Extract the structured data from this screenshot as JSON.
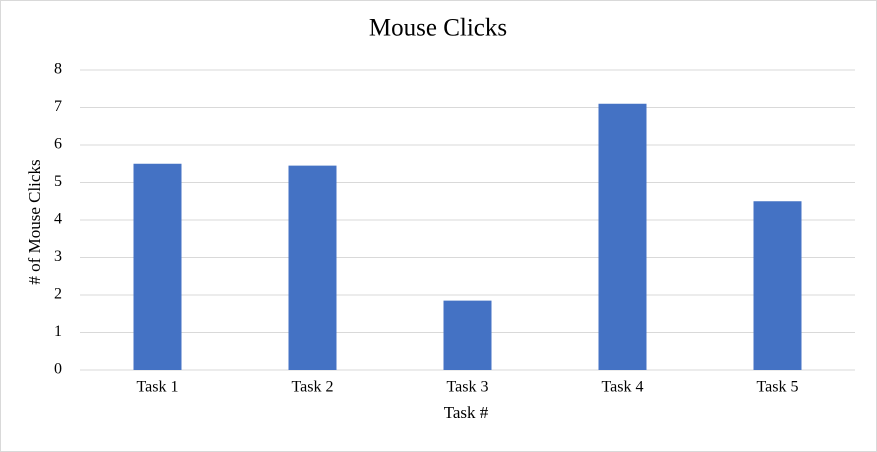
{
  "chart_data": {
    "type": "bar",
    "title": "Mouse Clicks",
    "x_label": "Task #",
    "y_label": "# of Mouse Clicks",
    "categories": [
      "Task 1",
      "Task 2",
      "Task 3",
      "Task 4",
      "Task 5"
    ],
    "values": [
      5.5,
      5.45,
      1.85,
      7.1,
      4.5
    ],
    "color": "#4472c4",
    "ylim": [
      0,
      8
    ],
    "yticks": [
      0,
      1,
      2,
      3,
      4,
      5,
      6,
      7,
      8
    ],
    "grid": true
  }
}
